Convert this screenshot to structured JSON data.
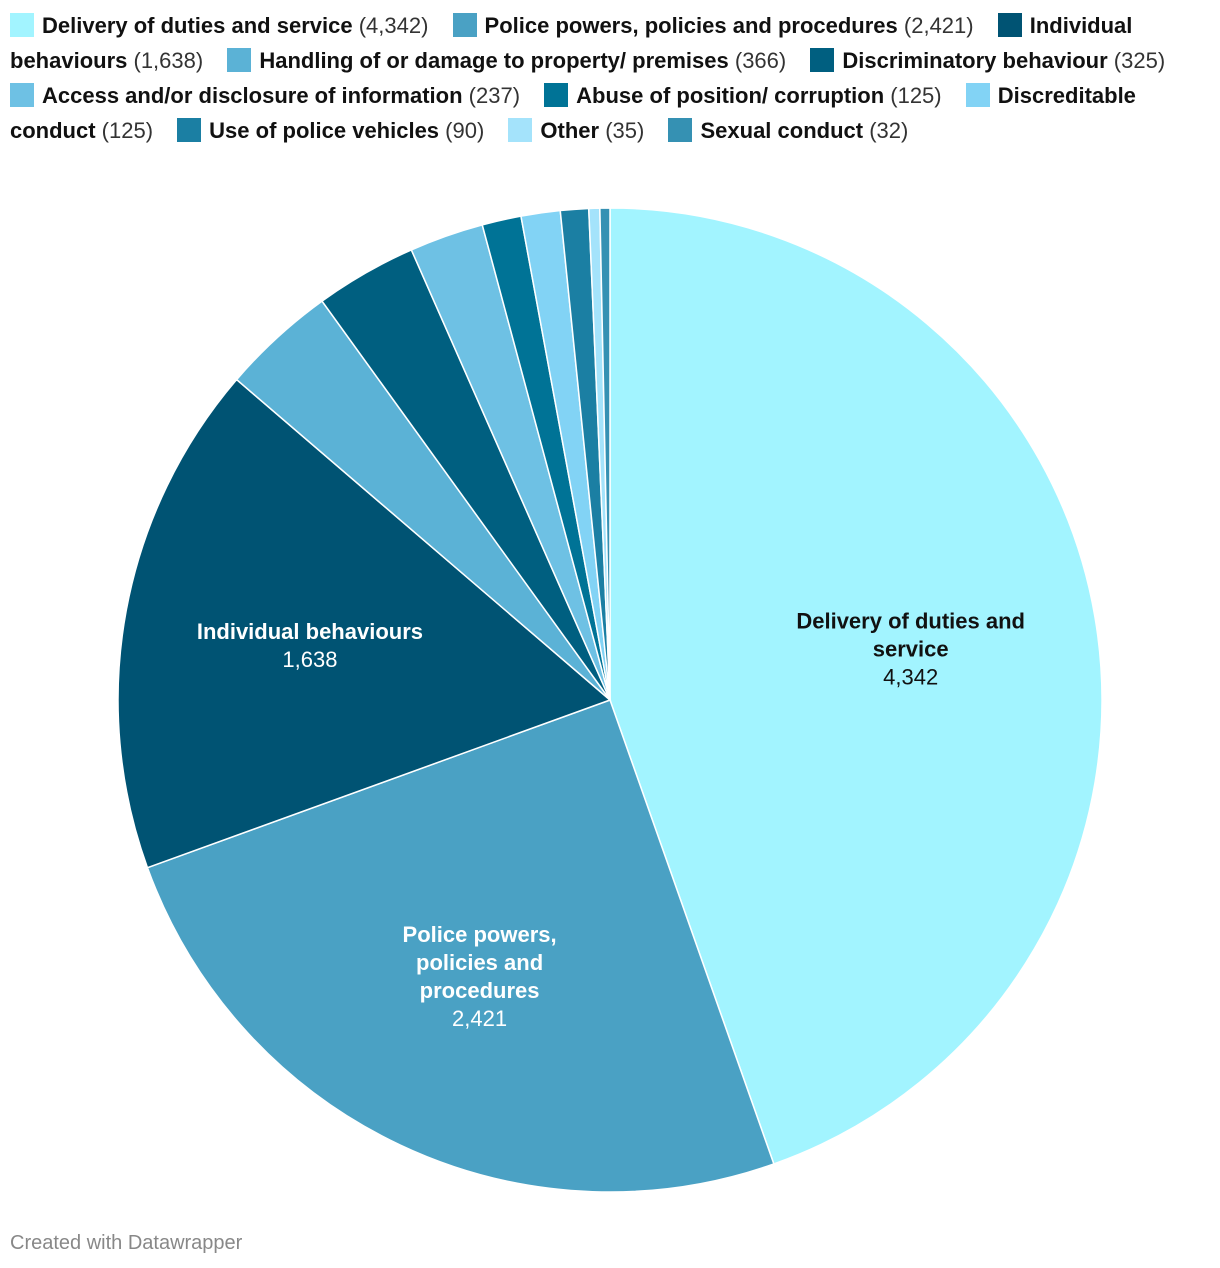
{
  "chart_data": {
    "type": "pie",
    "credit": "Created with Datawrapper",
    "slices": [
      {
        "name": "Delivery of duties and service",
        "value": 4342,
        "value_label": "4,342",
        "color": "#a2f4ff",
        "label_lines": [
          "Delivery of duties and",
          "service"
        ],
        "label_color": "#111111",
        "show_label": true
      },
      {
        "name": "Police powers, policies and procedures",
        "value": 2421,
        "value_label": "2,421",
        "color": "#4aa1c4",
        "label_lines": [
          "Police powers,",
          "policies and",
          "procedures"
        ],
        "label_color": "#ffffff",
        "show_label": true
      },
      {
        "name": "Individual behaviours",
        "value": 1638,
        "value_label": "1,638",
        "color": "#005373",
        "label_lines": [
          "Individual behaviours"
        ],
        "label_color": "#ffffff",
        "show_label": true
      },
      {
        "name": "Handling of or damage to property/ premises",
        "value": 366,
        "value_label": "366",
        "color": "#5bb2d6",
        "show_label": false
      },
      {
        "name": "Discriminatory behaviour",
        "value": 325,
        "value_label": "325",
        "color": "#005f80",
        "show_label": false
      },
      {
        "name": "Access and/or disclosure of information",
        "value": 237,
        "value_label": "237",
        "color": "#6ec1e4",
        "show_label": false
      },
      {
        "name": "Abuse of position/ corruption",
        "value": 125,
        "value_label": "125",
        "color": "#007396",
        "show_label": false
      },
      {
        "name": "Discreditable conduct",
        "value": 125,
        "value_label": "125",
        "color": "#82d3f5",
        "show_label": false
      },
      {
        "name": "Use of police vehicles",
        "value": 90,
        "value_label": "90",
        "color": "#1b7fa3",
        "show_label": false
      },
      {
        "name": "Other",
        "value": 35,
        "value_label": "35",
        "color": "#a4e3fb",
        "show_label": false
      },
      {
        "name": "Sexual conduct",
        "value": 32,
        "value_label": "32",
        "color": "#3591b3",
        "show_label": false
      }
    ]
  }
}
